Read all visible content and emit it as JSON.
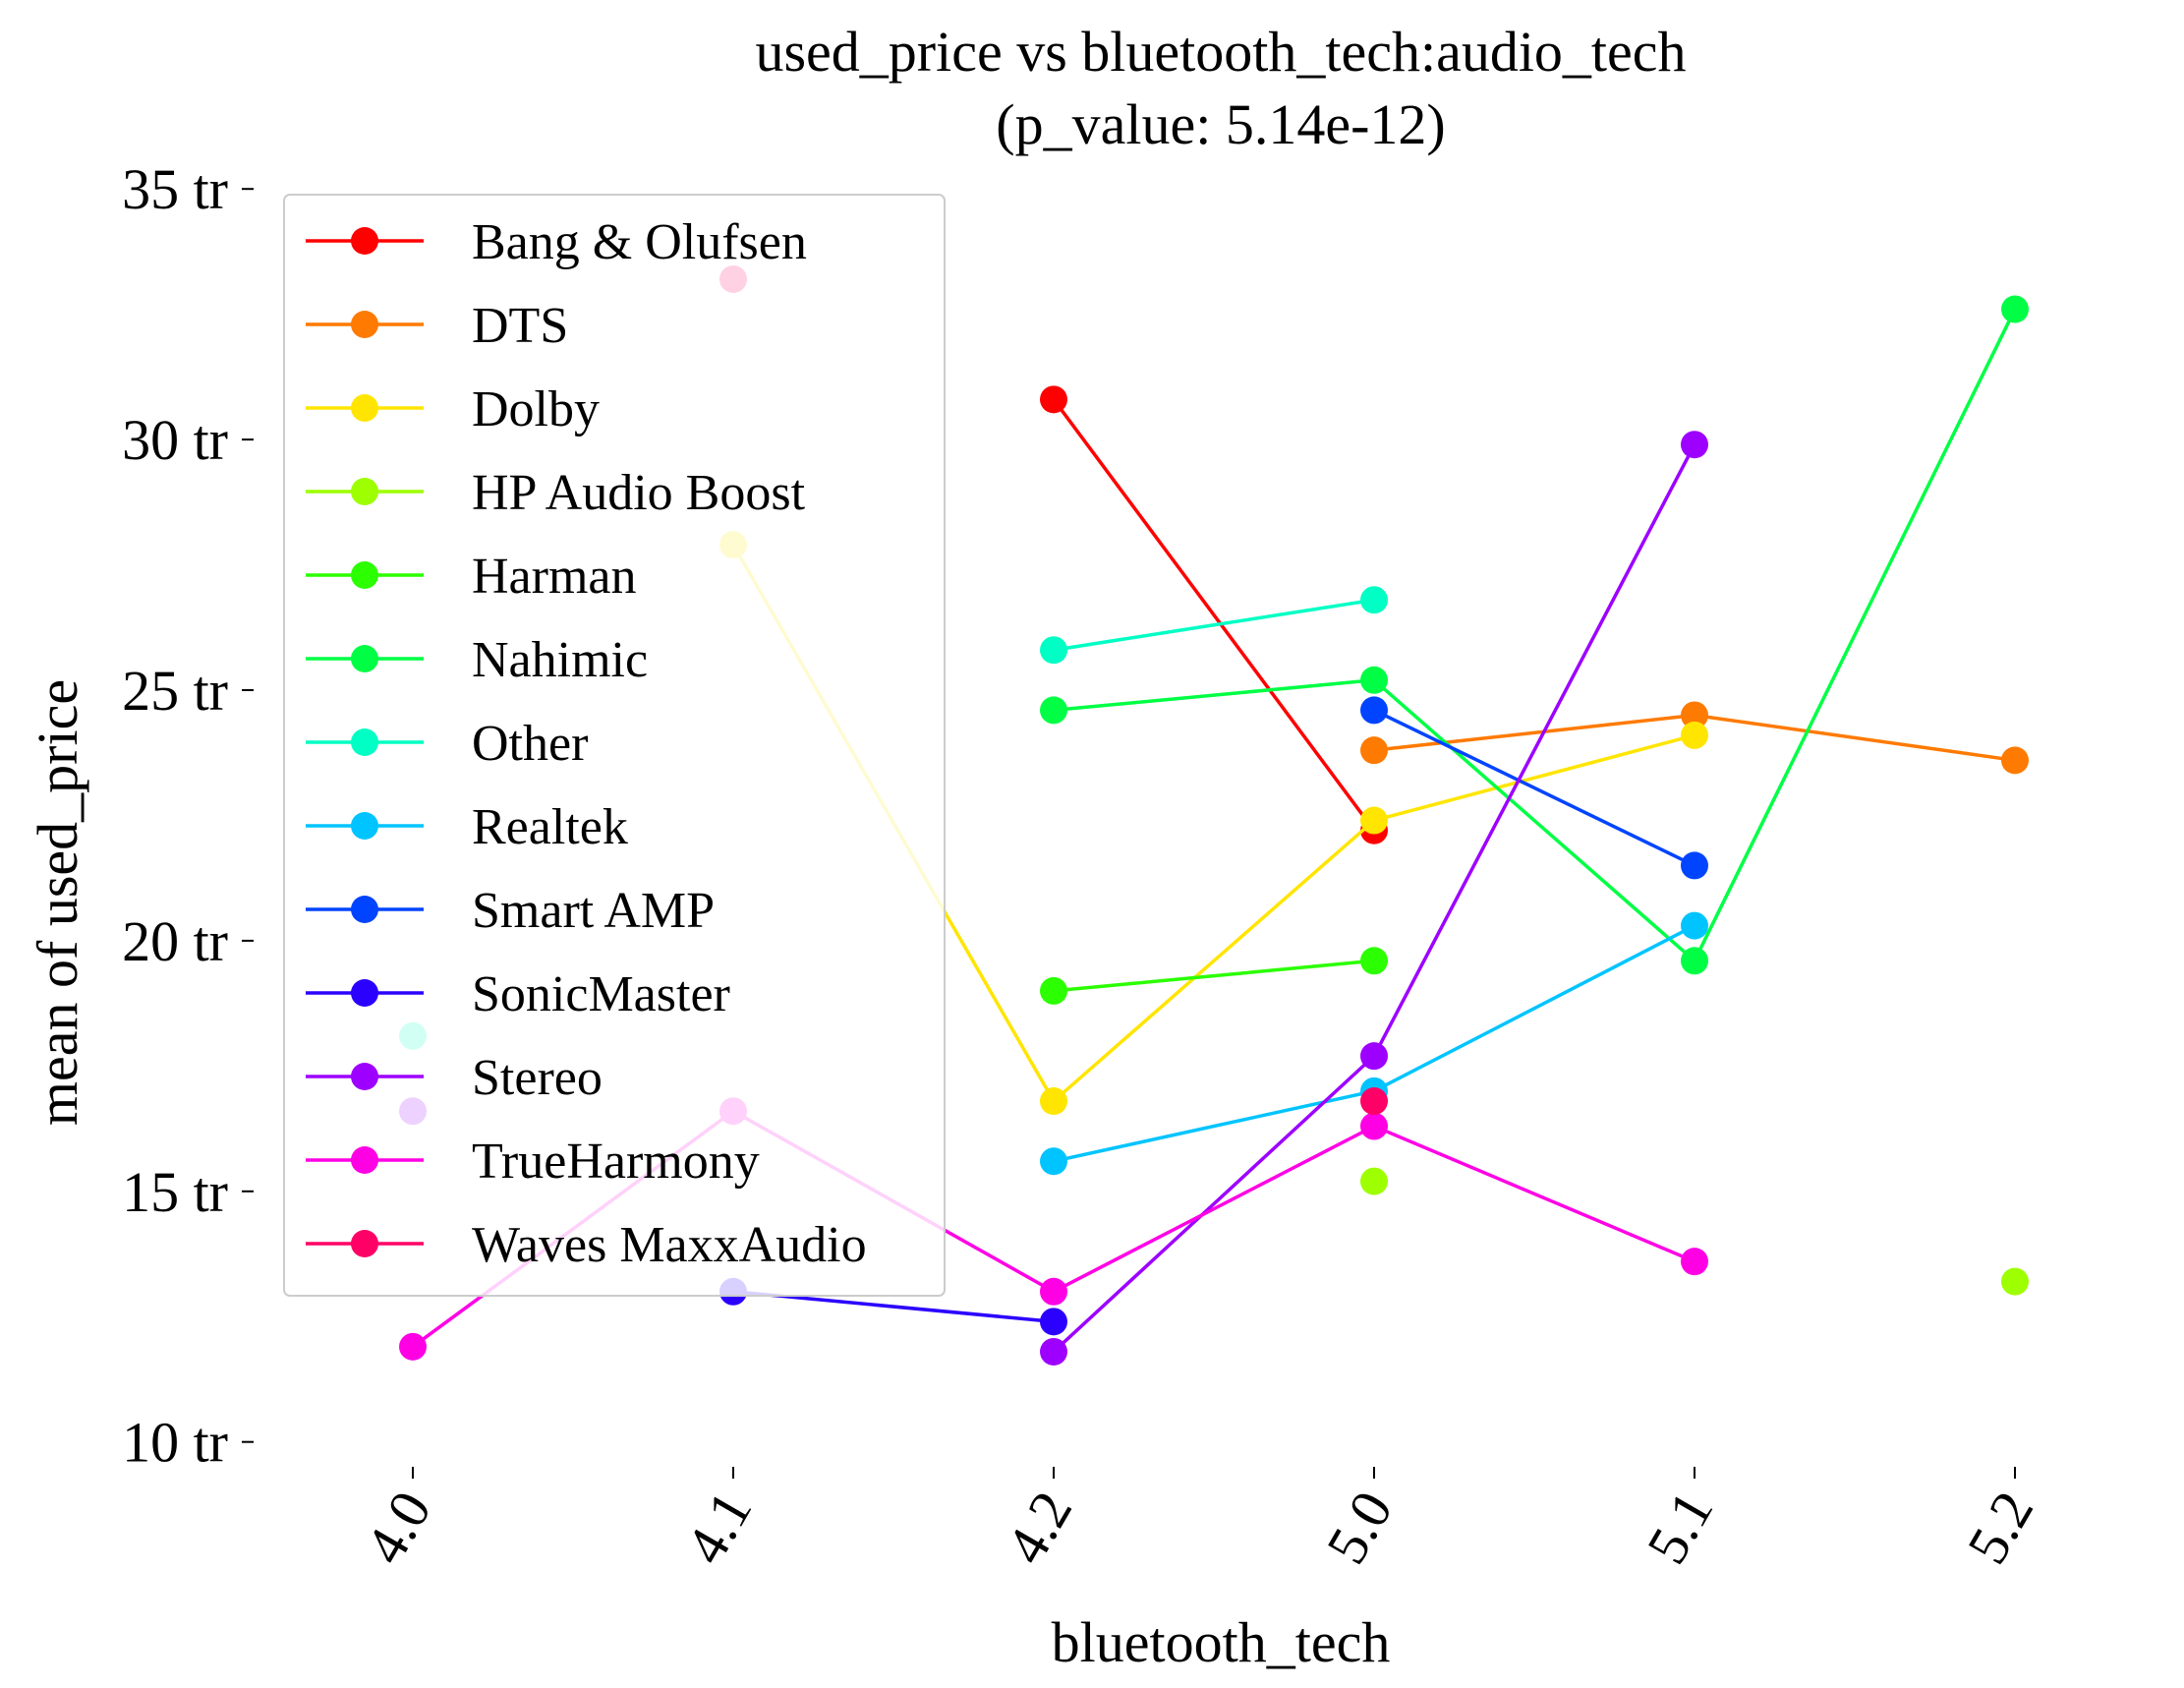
{
  "chart_data": {
    "type": "line",
    "title": "used_price vs bluetooth_tech:audio_tech",
    "subtitle": "(p_value: 5.14e-12)",
    "xlabel": "bluetooth_tech",
    "ylabel": "mean of used_price",
    "categories": [
      "4.0",
      "4.1",
      "4.2",
      "5.0",
      "5.1",
      "5.2"
    ],
    "y_ticks": [
      {
        "value": 10,
        "label": "10 tr"
      },
      {
        "value": 15,
        "label": "15 tr"
      },
      {
        "value": 20,
        "label": "20 tr"
      },
      {
        "value": 25,
        "label": "25 tr"
      },
      {
        "value": 30,
        "label": "30 tr"
      },
      {
        "value": 35,
        "label": "35 tr"
      }
    ],
    "ylim": [
      9.7,
      35.2
    ],
    "legend_position": "upper-left",
    "grid": false,
    "series": [
      {
        "name": "Bang & Olufsen",
        "color": "#ff0000",
        "values": [
          null,
          null,
          30.8,
          22.2,
          null,
          null
        ]
      },
      {
        "name": "DTS",
        "color": "#ff7a00",
        "values": [
          null,
          null,
          null,
          23.8,
          24.5,
          23.6
        ]
      },
      {
        "name": "Dolby",
        "color": "#ffe500",
        "values": [
          null,
          27.9,
          16.8,
          22.4,
          24.1,
          null
        ]
      },
      {
        "name": "HP Audio Boost",
        "color": "#9dff00",
        "values": [
          null,
          null,
          null,
          15.2,
          null,
          13.2
        ]
      },
      {
        "name": "Harman",
        "color": "#2bff00",
        "values": [
          null,
          null,
          19.0,
          19.6,
          null,
          null
        ]
      },
      {
        "name": "Nahimic",
        "color": "#00ff44",
        "values": [
          null,
          null,
          24.6,
          25.2,
          19.6,
          32.6
        ]
      },
      {
        "name": "Other",
        "color": "#00ffc4",
        "values": [
          18.1,
          null,
          25.8,
          26.8,
          null,
          null
        ]
      },
      {
        "name": "Realtek",
        "color": "#00c4ff",
        "values": [
          null,
          null,
          15.6,
          17.0,
          20.3,
          null
        ]
      },
      {
        "name": "Smart AMP",
        "color": "#0044ff",
        "values": [
          null,
          null,
          null,
          24.6,
          21.5,
          null
        ]
      },
      {
        "name": "SonicMaster",
        "color": "#2b00ff",
        "values": [
          null,
          13.0,
          12.4,
          null,
          null,
          null
        ]
      },
      {
        "name": "Stereo",
        "color": "#9d00ff",
        "values": [
          16.6,
          null,
          11.8,
          17.7,
          29.9,
          null
        ]
      },
      {
        "name": "TrueHarmony",
        "color": "#ff00e5",
        "values": [
          11.9,
          16.6,
          13.0,
          16.3,
          13.6,
          null
        ]
      },
      {
        "name": "Waves MaxxAudio",
        "color": "#ff0066",
        "values": [
          null,
          33.2,
          null,
          16.8,
          null,
          null
        ]
      }
    ]
  }
}
